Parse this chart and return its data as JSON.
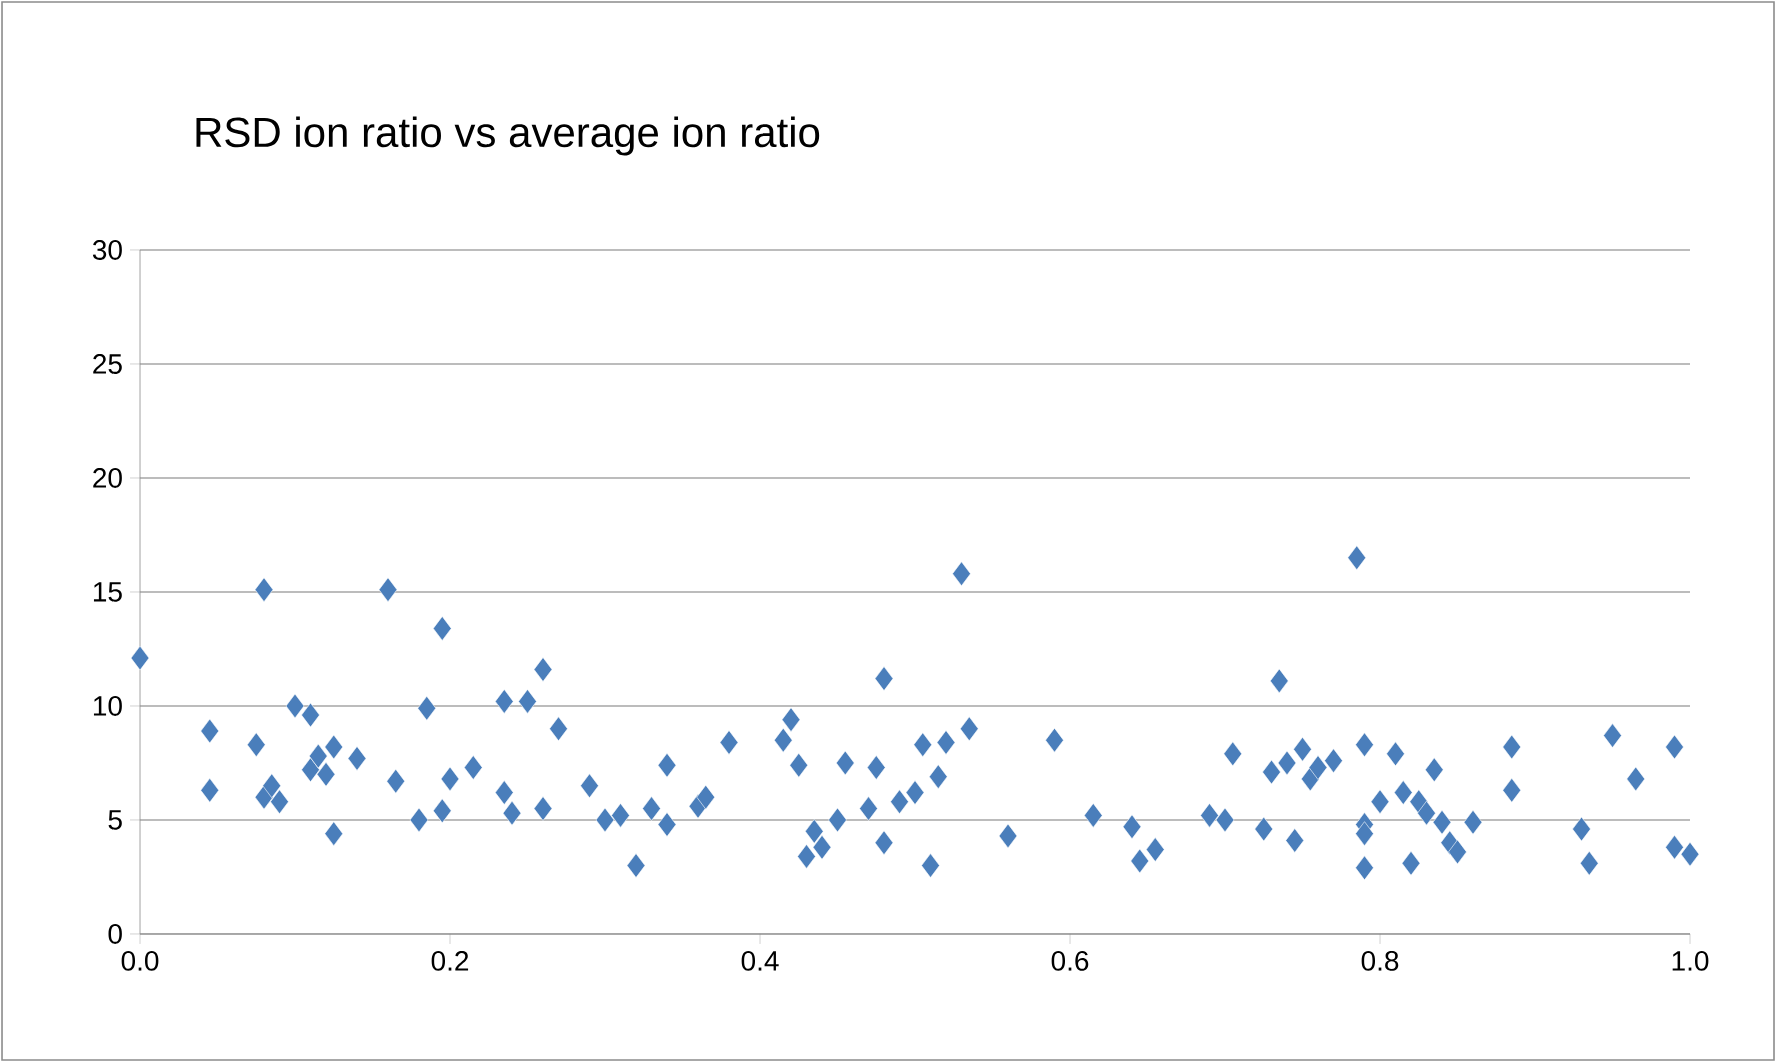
{
  "chart_data": {
    "type": "scatter",
    "title": "RSD ion ratio vs average ion ratio",
    "x": [
      0.0,
      0.045,
      0.045,
      0.075,
      0.08,
      0.08,
      0.085,
      0.09,
      0.1,
      0.11,
      0.11,
      0.115,
      0.12,
      0.125,
      0.125,
      0.14,
      0.16,
      0.165,
      0.18,
      0.185,
      0.195,
      0.195,
      0.2,
      0.215,
      0.235,
      0.235,
      0.24,
      0.25,
      0.26,
      0.26,
      0.27,
      0.29,
      0.3,
      0.31,
      0.32,
      0.33,
      0.34,
      0.34,
      0.36,
      0.365,
      0.38,
      0.415,
      0.42,
      0.425,
      0.43,
      0.435,
      0.44,
      0.45,
      0.455,
      0.47,
      0.475,
      0.48,
      0.48,
      0.49,
      0.5,
      0.505,
      0.51,
      0.515,
      0.52,
      0.53,
      0.535,
      0.56,
      0.59,
      0.615,
      0.64,
      0.645,
      0.655,
      0.69,
      0.7,
      0.705,
      0.725,
      0.73,
      0.735,
      0.74,
      0.745,
      0.75,
      0.755,
      0.76,
      0.77,
      0.785,
      0.79,
      0.79,
      0.79,
      0.79,
      0.8,
      0.81,
      0.815,
      0.82,
      0.825,
      0.83,
      0.835,
      0.84,
      0.845,
      0.85,
      0.86,
      0.885,
      0.885,
      0.93,
      0.935,
      0.95,
      0.965,
      0.99,
      0.99,
      1.0
    ],
    "values": [
      12.1,
      8.9,
      6.3,
      8.3,
      15.1,
      6.0,
      6.5,
      5.8,
      10.0,
      7.2,
      9.6,
      7.8,
      7.0,
      8.2,
      4.4,
      7.7,
      15.1,
      6.7,
      5.0,
      9.9,
      5.4,
      13.4,
      6.8,
      7.3,
      10.2,
      6.2,
      5.3,
      10.2,
      11.6,
      5.5,
      9.0,
      6.5,
      5.0,
      5.2,
      3.0,
      5.5,
      7.4,
      4.8,
      5.6,
      6.0,
      8.4,
      8.5,
      9.4,
      7.4,
      3.4,
      4.5,
      3.8,
      5.0,
      7.5,
      5.5,
      7.3,
      11.2,
      4.0,
      5.8,
      6.2,
      8.3,
      3.0,
      6.9,
      8.4,
      15.8,
      9.0,
      4.3,
      8.5,
      5.2,
      4.7,
      3.2,
      3.7,
      5.2,
      5.0,
      7.9,
      4.6,
      7.1,
      11.1,
      7.5,
      4.1,
      8.1,
      6.8,
      7.3,
      7.6,
      16.5,
      8.3,
      4.8,
      2.9,
      4.4,
      5.8,
      7.9,
      6.2,
      3.1,
      5.8,
      5.3,
      7.2,
      4.9,
      4.0,
      3.6,
      4.9,
      8.2,
      6.3,
      4.6,
      3.1,
      8.7,
      6.8,
      3.8,
      8.2,
      3.5
    ],
    "color": "#4a7ebb",
    "marker": "diamond",
    "grid": "y",
    "xlim": [
      0,
      1.0
    ],
    "xticks": [
      {
        "value": 0,
        "label": "0.0"
      },
      {
        "value": 0.2,
        "label": "0.2"
      },
      {
        "value": 0.4,
        "label": "0.4"
      },
      {
        "value": 0.6,
        "label": "0.6"
      },
      {
        "value": 0.8,
        "label": "0.8"
      },
      {
        "value": 1.0,
        "label": "1.0"
      }
    ],
    "ylim": [
      0,
      30
    ],
    "yticks": [
      0,
      5,
      10,
      15,
      20,
      25,
      30
    ]
  }
}
